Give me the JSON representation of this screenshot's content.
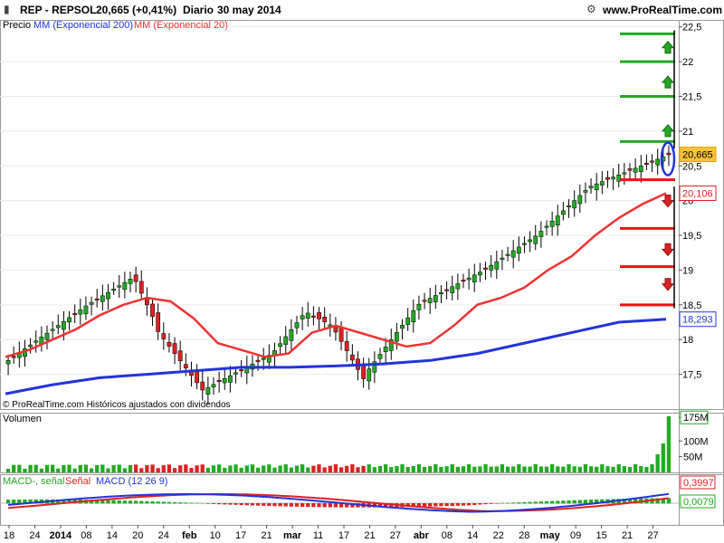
{
  "header": {
    "symbol": "REP - REPSOL",
    "price": "20,665 (+0,41%)",
    "period": "Diario",
    "date": "30 may 2014",
    "site": "www.ProRealTime.com"
  },
  "legend": {
    "main": [
      "Precio",
      "MM (Exponencial 200)",
      "MM (Exponencial 20)"
    ],
    "volume": "Volumen",
    "macd": [
      "MACD-, señal",
      "Señal",
      "MACD (12 26 9)"
    ]
  },
  "copyright": "© ProRealTime.com Históricos ajustados con dividendos",
  "colors": {
    "up": "#22aa22",
    "down": "#dd2222",
    "ema20": "#ee3333",
    "ema200": "#2233dd",
    "accent": "#e8a000",
    "level_up": "#22aa22",
    "level_down": "#ee1111",
    "grid": "#cccccc"
  },
  "chart_data": [
    {
      "type": "candlestick",
      "ylim": [
        17.0,
        22.6
      ],
      "yticks": [
        "22,5",
        "22",
        "21,5",
        "21",
        "20,5",
        "20",
        "19,5",
        "19",
        "18,5",
        "18",
        "17,5"
      ],
      "ytick_values": [
        22.5,
        22.0,
        21.5,
        21.0,
        20.5,
        20.0,
        19.5,
        19.0,
        18.5,
        18.0,
        17.5
      ],
      "xticks": [
        "18",
        "24",
        "2014",
        "08",
        "14",
        "20",
        "24",
        "feb",
        "10",
        "17",
        "21",
        "mar",
        "11",
        "17",
        "21",
        "27",
        "abr",
        "08",
        "14",
        "22",
        "28",
        "may",
        "09",
        "15",
        "21",
        "27"
      ],
      "value_badges": [
        {
          "label": "20,665",
          "value": 20.665,
          "color": "#e8a000"
        },
        {
          "label": "20,106",
          "value": 20.106,
          "color": "#dd2222"
        },
        {
          "label": "18,293",
          "value": 18.293,
          "color": "#2233dd"
        }
      ],
      "levels": [
        {
          "value": 22.4,
          "color": "green"
        },
        {
          "value": 22.0,
          "color": "green"
        },
        {
          "value": 21.5,
          "color": "green"
        },
        {
          "value": 20.85,
          "color": "green"
        },
        {
          "value": 20.3,
          "color": "red"
        },
        {
          "value": 19.6,
          "color": "red"
        },
        {
          "value": 19.05,
          "color": "red"
        },
        {
          "value": 18.5,
          "color": "red"
        }
      ],
      "ema200": [
        17.22,
        17.35,
        17.45,
        17.5,
        17.55,
        17.6,
        17.6,
        17.62,
        17.65,
        17.7,
        17.8,
        17.95,
        18.1,
        18.25,
        18.293
      ],
      "ema20": [
        17.75,
        17.85,
        18.0,
        18.15,
        18.35,
        18.5,
        18.6,
        18.55,
        18.3,
        17.95,
        17.85,
        17.75,
        17.8,
        18.1,
        18.2,
        18.1,
        18.0,
        17.9,
        17.95,
        18.2,
        18.5,
        18.6,
        18.75,
        19.0,
        19.2,
        19.5,
        19.75,
        19.95,
        20.106
      ]
    },
    {
      "type": "bar",
      "title": "Volumen",
      "yticks": [
        "175M",
        "100M",
        "50M"
      ],
      "ytick_values": [
        175,
        100,
        50
      ]
    },
    {
      "type": "line",
      "title": "MACD (12 26 9)",
      "yticks": [
        "0,3997",
        "0,0079"
      ],
      "ytick_values": [
        0.3997,
        0.0079
      ]
    }
  ]
}
